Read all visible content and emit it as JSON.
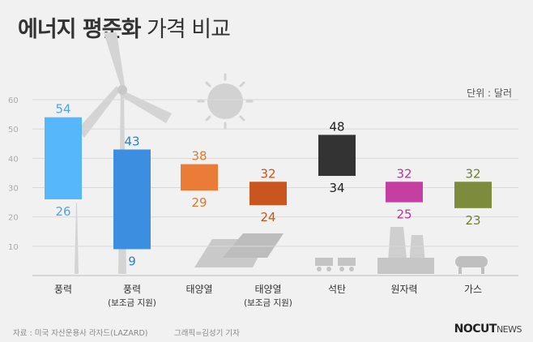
{
  "title": {
    "bold": "에너지 평준화",
    "rest": "가격 비교"
  },
  "unit": "단위 : 달러",
  "source": "자료 : 미국 자산운용사 라자드(LAZARD)",
  "credit": "그래픽=김성기 기자",
  "logo": {
    "main": "NOCUT",
    "suffix": "NEWS"
  },
  "chart_data": {
    "type": "bar",
    "subtype": "floating-range",
    "categories": [
      "풍력",
      "풍력",
      "태양열",
      "태양열",
      "석탄",
      "원자력",
      "가스"
    ],
    "category_sublabels": [
      "",
      "(보조금 지원)",
      "",
      "(보조금 지원)",
      "",
      "",
      ""
    ],
    "high": [
      54,
      43,
      38,
      32,
      48,
      32,
      32
    ],
    "low": [
      26,
      9,
      29,
      24,
      34,
      25,
      23
    ],
    "colors": [
      "#57b7fb",
      "#3b8ee0",
      "#ea7c37",
      "#c9561f",
      "#333333",
      "#c53fa1",
      "#7d8c3c"
    ],
    "label_colors": [
      "#4aa6ea",
      "#2f7fd3",
      "#e0792f",
      "#c5561d",
      "#222222",
      "#b8359a",
      "#6e7f2e"
    ],
    "yticks": [
      10,
      20,
      30,
      40,
      50,
      60
    ],
    "ylim": [
      0,
      60
    ],
    "grid": true
  }
}
